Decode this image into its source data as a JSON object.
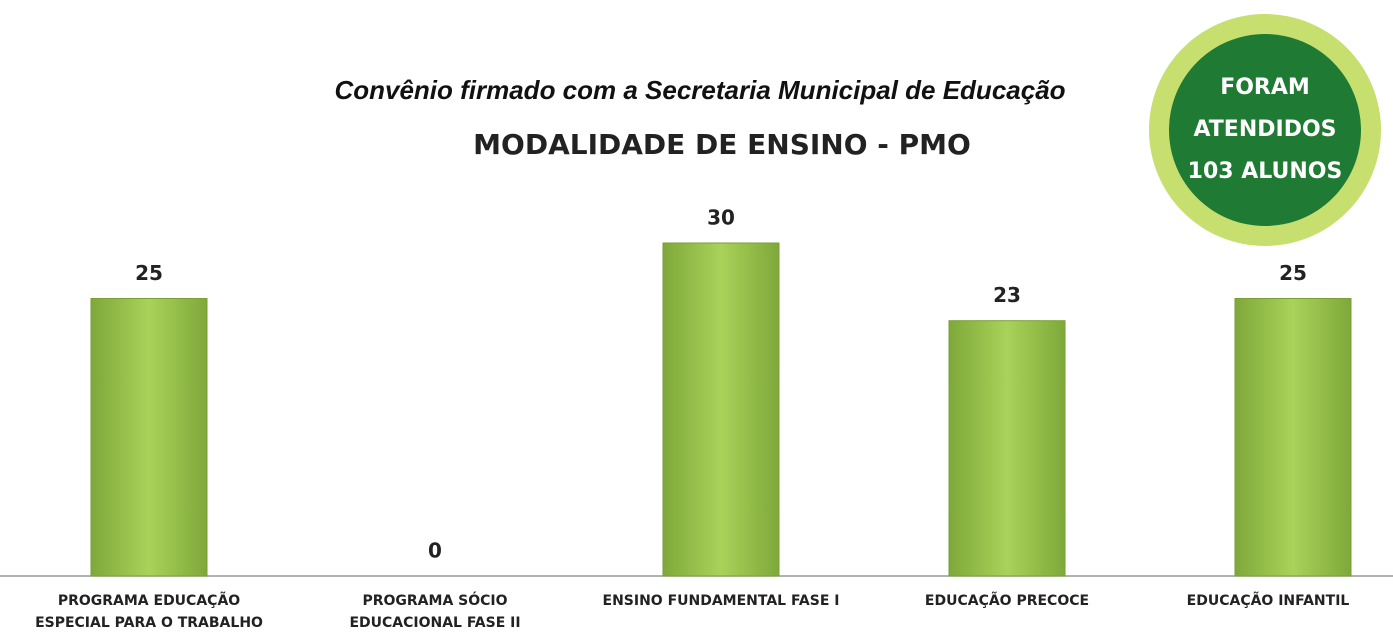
{
  "chart_data": {
    "type": "bar",
    "subtitle": "Convênio firmado com a Secretaria Municipal de Educação",
    "title": "MODALIDADE DE ENSINO - PMO",
    "categories": [
      "PROGRAMA EDUCAÇÃO ESPECIAL PARA O TRABALHO",
      "PROGRAMA SÓCIO EDUCACIONAL FASE II",
      "ENSINO FUNDAMENTAL FASE I",
      "EDUCAÇÃO PRECOCE",
      "EDUCAÇÃO INFANTIL"
    ],
    "values": [
      25,
      0,
      30,
      23,
      25
    ],
    "color": "#92c13e",
    "ylim": [
      0,
      30
    ],
    "badge": [
      "FORAM",
      "ATENDIDOS",
      "103 ALUNOS"
    ]
  }
}
